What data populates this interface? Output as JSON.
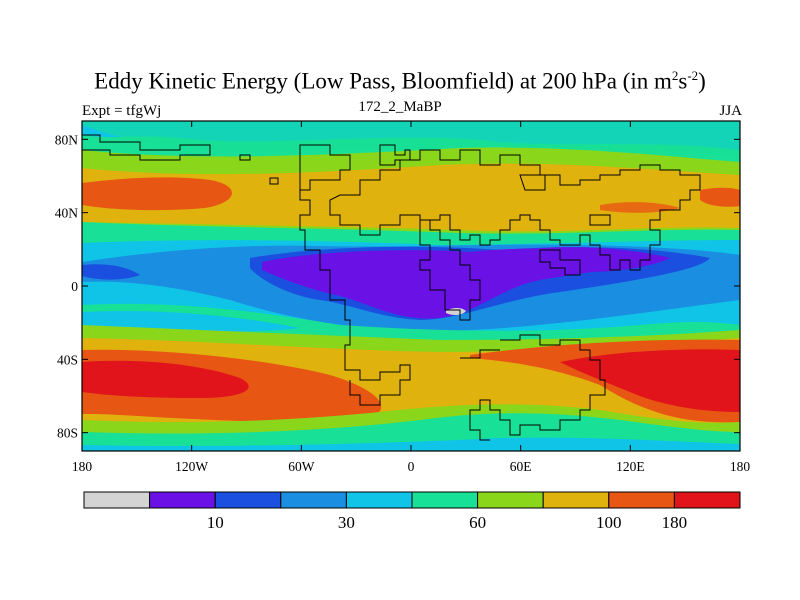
{
  "title": {
    "main": "Eddy Kinetic Energy (Low Pass, Bloomfield) at 200 hPa (in m",
    "sup1": "2",
    "mid": "s",
    "sup2": "-2",
    "close": ")"
  },
  "left_label": "Expt = tfgWj",
  "center_label": "172_2_MaBP",
  "right_label": "JJA",
  "x_ticks": [
    "180",
    "120W",
    "60W",
    "0",
    "60E",
    "120E",
    "180"
  ],
  "y_ticks": [
    "80N",
    "40N",
    "0",
    "40S",
    "80S"
  ],
  "colorbar": {
    "colors": [
      "#d3d3d3",
      "#6a12e6",
      "#1a4fe0",
      "#1a8ee0",
      "#10c4e8",
      "#18e096",
      "#8ad61a",
      "#e0b20e",
      "#e85614",
      "#e0141a"
    ],
    "labels": [
      {
        "text": "10",
        "index": 2
      },
      {
        "text": "30",
        "index": 4
      },
      {
        "text": "60",
        "index": 6
      },
      {
        "text": "100",
        "index": 8
      },
      {
        "text": "180",
        "index": 9
      }
    ]
  },
  "chart_data": {
    "type": "heatmap",
    "title": "Eddy Kinetic Energy (Low Pass, Bloomfield) at 200 hPa (in m2s-2)",
    "experiment": "Expt = tfgWj",
    "case": "172_2_MaBP",
    "season": "JJA",
    "x_range": [
      -180,
      180
    ],
    "y_range": [
      -90,
      90
    ],
    "x_ticks": [
      -180,
      -120,
      -60,
      0,
      60,
      120,
      180
    ],
    "y_ticks": [
      80,
      40,
      0,
      -40,
      -80
    ],
    "levels": [
      10,
      30,
      60,
      100,
      180
    ],
    "features": [
      {
        "region": "tropical low (Africa/Indian Ocean)",
        "level": "<10"
      },
      {
        "region": "northern midlatitude jet",
        "level": "100-180"
      },
      {
        "region": "southern midlatitude jet",
        "level": ">180"
      }
    ]
  }
}
